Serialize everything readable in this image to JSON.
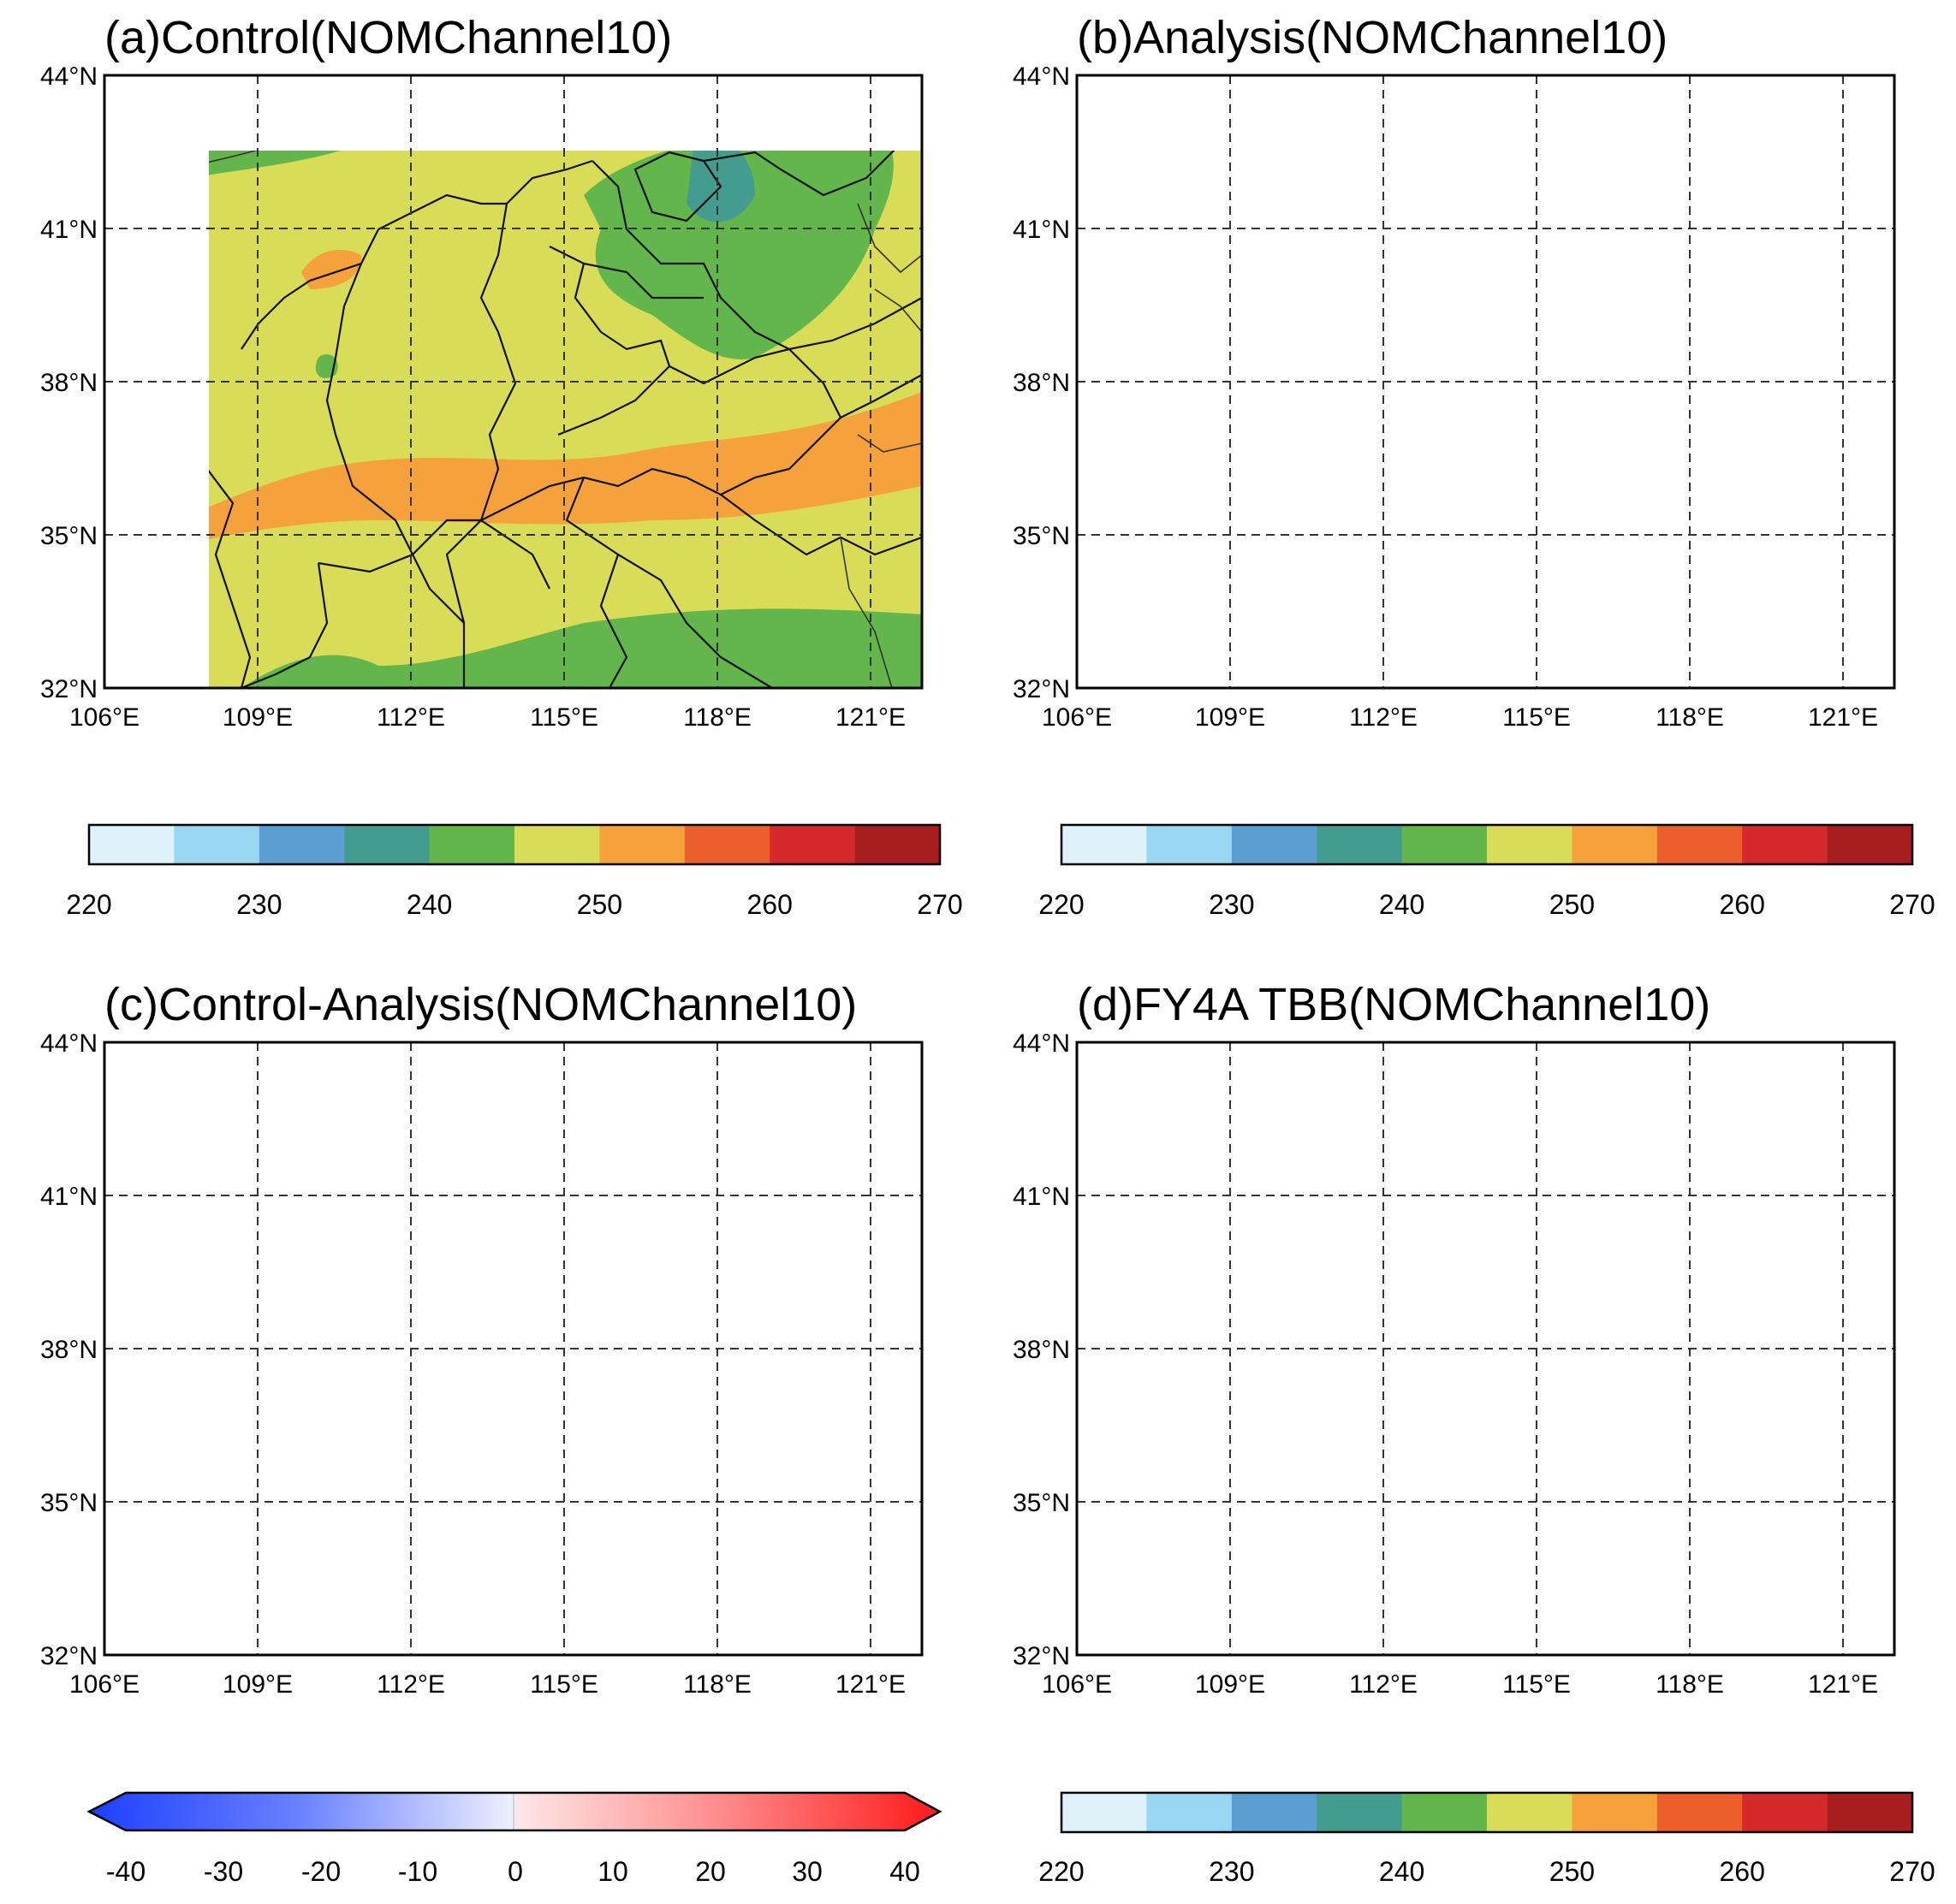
{
  "panels": [
    {
      "id": "a",
      "title": "(a)Control(NOMChannel10)"
    },
    {
      "id": "b",
      "title": "(b)Analysis(NOMChannel10)"
    },
    {
      "id": "c",
      "title": "(c)Control-Analysis(NOMChannel10)"
    },
    {
      "id": "d",
      "title": "(d)FY4A TBB(NOMChannel10)"
    }
  ],
  "axes": {
    "lon_labels": [
      "106°E",
      "109°E",
      "112°E",
      "115°E",
      "118°E",
      "121°E"
    ],
    "lat_labels": [
      "44°N",
      "41°N",
      "38°N",
      "35°N",
      "32°N"
    ],
    "lon_range": [
      106,
      122
    ],
    "lat_range": [
      32,
      44
    ]
  },
  "colorbar_tbb": {
    "labels": [
      "220",
      "230",
      "240",
      "250",
      "260",
      "270"
    ],
    "levels": [
      220,
      225,
      230,
      235,
      240,
      245,
      250,
      255,
      260,
      265,
      270
    ],
    "colors": [
      "#def2fa",
      "#98d6f2",
      "#5b9fd3",
      "#439c8e",
      "#62b64b",
      "#d9dc57",
      "#f5a23c",
      "#ec5f2a",
      "#d52a2b",
      "#a81d20"
    ]
  },
  "colorbar_diff": {
    "labels": [
      "-40",
      "-30",
      "-20",
      "-10",
      "0",
      "10",
      "20",
      "30",
      "40"
    ],
    "range": [
      -40,
      40
    ],
    "extend": "both"
  }
}
